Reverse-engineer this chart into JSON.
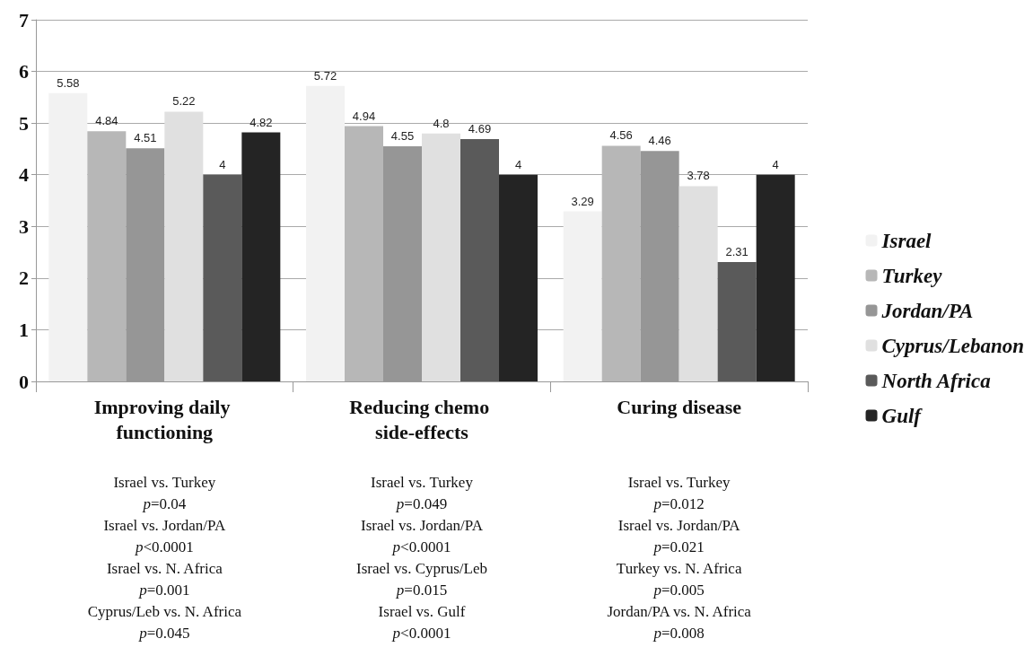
{
  "chart_data": {
    "type": "bar",
    "categories": [
      "Improving daily functioning",
      "Reducing chemo side-effects",
      "Curing disease"
    ],
    "series": [
      {
        "name": "Israel",
        "color": "#f2f2f2",
        "values": [
          5.58,
          5.72,
          3.29
        ]
      },
      {
        "name": "Turkey",
        "color": "#b7b7b7",
        "values": [
          4.84,
          4.94,
          4.56
        ]
      },
      {
        "name": "Jordan/PA",
        "color": "#969696",
        "values": [
          4.51,
          4.55,
          4.46
        ]
      },
      {
        "name": "Cyprus/Lebanon",
        "color": "#e0e0e0",
        "values": [
          5.22,
          4.8,
          3.78
        ]
      },
      {
        "name": "North Africa",
        "color": "#5a5a5a",
        "values": [
          4,
          4.69,
          2.31
        ]
      },
      {
        "name": "Gulf",
        "color": "#242424",
        "values": [
          4.82,
          4,
          4
        ]
      }
    ],
    "ylim": [
      0,
      7
    ],
    "yticks": [
      0,
      1,
      2,
      3,
      4,
      5,
      6,
      7
    ],
    "grid": "y",
    "legend": "right",
    "data_labels": true,
    "annotations": [
      "Israel vs. Turkey\np=0.04",
      "Israel vs. Jordan/PA\np<0.0001",
      "Israel vs. N. Africa\np=0.001",
      "Cyprus/Leb vs. N. Africa\np=0.045",
      "Israel vs. Turkey\np=0.049",
      "Israel vs. Jordan/PA\np<0.0001",
      "Israel vs. Cyprus/Leb\np=0.015",
      "Israel vs. Gulf\np<0.0001",
      "Israel vs. Turkey\np=0.012",
      "Israel vs. Jordan/PA\np=0.021",
      "Turkey vs. N. Africa\np=0.005",
      "Jordan/PA vs. N. Africa\np=0.008"
    ]
  }
}
